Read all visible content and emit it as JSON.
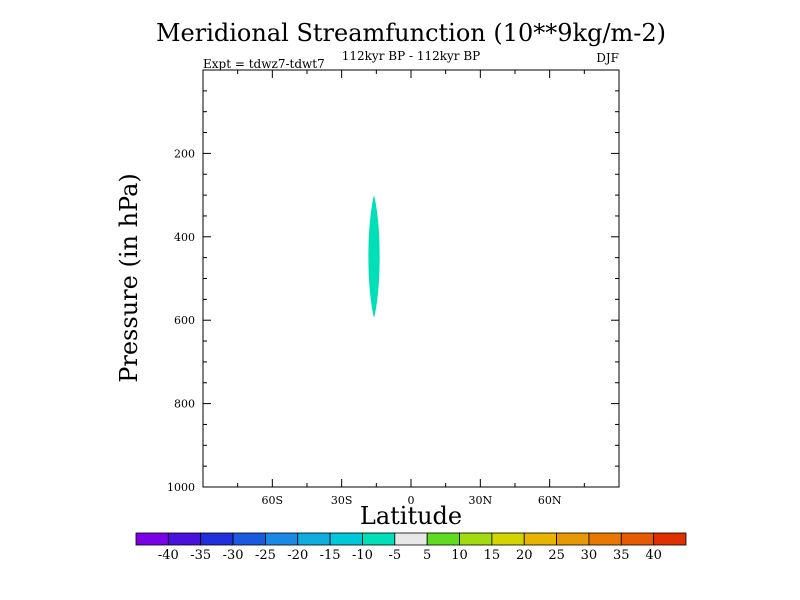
{
  "chart_data": {
    "type": "heatmap",
    "title": "Meridional Streamfunction (10**9kg/m-2)",
    "subtitle": "112kyr BP - 112kyr BP",
    "left_label": "Expt = tdwz7-tdwt7",
    "right_label": "DJF",
    "xlabel": "Latitude",
    "ylabel": "Pressure (in hPa)",
    "x_range": [
      -90,
      90
    ],
    "y_range": [
      1000,
      0
    ],
    "y_reversed": true,
    "x_ticks": [
      {
        "value": -60,
        "label": "60S"
      },
      {
        "value": -30,
        "label": "30S"
      },
      {
        "value": 0,
        "label": "0"
      },
      {
        "value": 30,
        "label": "30N"
      },
      {
        "value": 60,
        "label": "60N"
      }
    ],
    "y_ticks": [
      {
        "value": 200,
        "label": "200"
      },
      {
        "value": 400,
        "label": "400"
      },
      {
        "value": 600,
        "label": "600"
      },
      {
        "value": 800,
        "label": "800"
      },
      {
        "value": 1000,
        "label": "1000"
      }
    ],
    "contour_regions": [
      {
        "level": "-10 to -5",
        "color": "#00e0b8",
        "lat_center": -16,
        "lat_halfwidth": 2.5,
        "p_top": 300,
        "p_bottom": 595
      }
    ],
    "colorbar": {
      "colors": [
        "#7a00e6",
        "#4a10dc",
        "#2030dc",
        "#1a5ae0",
        "#1a88e6",
        "#10aee0",
        "#00c8dc",
        "#00e0b8",
        "#e8e8e8",
        "#60dc20",
        "#a0dc10",
        "#d4d400",
        "#e8b400",
        "#e89800",
        "#e87800",
        "#e85a00",
        "#e03000"
      ],
      "labels": [
        "-40",
        "-35",
        "-30",
        "-25",
        "-20",
        "-15",
        "-10",
        "-5",
        "5",
        "10",
        "15",
        "20",
        "25",
        "30",
        "35",
        "40"
      ]
    }
  }
}
